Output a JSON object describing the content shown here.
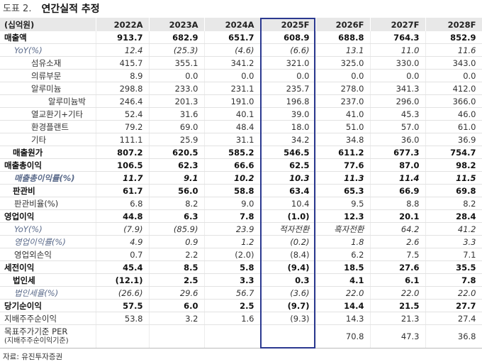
{
  "figure_label": "도표 2.",
  "title": "연간실적 추정",
  "header": [
    "(십억원)",
    "2022A",
    "2023A",
    "2024A",
    "2025F",
    "2026F",
    "2027F",
    "2028F"
  ],
  "rows": [
    {
      "label": "매출액",
      "style": "bold",
      "indent": "",
      "values": [
        "913.7",
        "682.9",
        "651.7",
        "608.9",
        "688.8",
        "764.3",
        "852.9"
      ]
    },
    {
      "label": "YoY(%)",
      "style": "ital",
      "indent": "i1",
      "values": [
        "12.4",
        "(25.3)",
        "(4.6)",
        "(6.6)",
        "13.1",
        "11.0",
        "11.6"
      ]
    },
    {
      "label": "섬유소재",
      "style": "",
      "indent": "i2",
      "values": [
        "415.7",
        "355.1",
        "341.2",
        "321.0",
        "325.0",
        "330.0",
        "343.0"
      ]
    },
    {
      "label": "의류부문",
      "style": "",
      "indent": "i2",
      "values": [
        "8.9",
        "0.0",
        "0.0",
        "0.0",
        "0.0",
        "0.0",
        "0.0"
      ]
    },
    {
      "label": "알루미늄",
      "style": "",
      "indent": "i2",
      "values": [
        "298.8",
        "233.0",
        "231.1",
        "235.7",
        "278.0",
        "341.3",
        "412.0"
      ]
    },
    {
      "label": "알루미늄박",
      "style": "",
      "indent": "i3",
      "values": [
        "246.4",
        "201.3",
        "191.0",
        "196.8",
        "237.0",
        "296.0",
        "366.0"
      ]
    },
    {
      "label": "열교환기+기타",
      "style": "",
      "indent": "i2",
      "values": [
        "52.4",
        "31.6",
        "40.1",
        "39.0",
        "41.0",
        "45.3",
        "46.0"
      ]
    },
    {
      "label": "환경플랜트",
      "style": "",
      "indent": "i2",
      "values": [
        "79.2",
        "69.0",
        "48.4",
        "18.0",
        "51.0",
        "57.0",
        "61.0"
      ]
    },
    {
      "label": "기타",
      "style": "",
      "indent": "i2",
      "values": [
        "111.1",
        "25.9",
        "31.1",
        "34.2",
        "34.8",
        "36.0",
        "36.9"
      ]
    },
    {
      "label": "매출원가",
      "style": "bold",
      "indent": "i0b",
      "values": [
        "807.2",
        "620.5",
        "585.2",
        "546.5",
        "611.2",
        "677.3",
        "754.7"
      ]
    },
    {
      "label": "매출총이익",
      "style": "bold",
      "indent": "",
      "values": [
        "106.5",
        "62.3",
        "66.6",
        "62.5",
        "77.6",
        "87.0",
        "98.2"
      ]
    },
    {
      "label": "매출총이익률(%)",
      "style": "bold ital",
      "indent": "i1",
      "values": [
        "11.7",
        "9.1",
        "10.2",
        "10.3",
        "11.3",
        "11.4",
        "11.5"
      ]
    },
    {
      "label": "판관비",
      "style": "bold",
      "indent": "i0b",
      "values": [
        "61.7",
        "56.0",
        "58.8",
        "63.4",
        "65.3",
        "66.9",
        "69.8"
      ]
    },
    {
      "label": "판관비율(%)",
      "style": "",
      "indent": "i1",
      "values": [
        "6.8",
        "8.2",
        "9.0",
        "10.4",
        "9.5",
        "8.8",
        "8.2"
      ]
    },
    {
      "label": "영업이익",
      "style": "bold",
      "indent": "",
      "values": [
        "44.8",
        "6.3",
        "7.8",
        "(1.0)",
        "12.3",
        "20.1",
        "28.4"
      ]
    },
    {
      "label": "YoY(%)",
      "style": "ital",
      "indent": "i1",
      "values": [
        "(7.9)",
        "(85.9)",
        "23.9",
        "적자전환",
        "흑자전환",
        "64.2",
        "41.2"
      ]
    },
    {
      "label": "영업이익률(%)",
      "style": "ital",
      "indent": "i1",
      "values": [
        "4.9",
        "0.9",
        "1.2",
        "(0.2)",
        "1.8",
        "2.6",
        "3.3"
      ]
    },
    {
      "label": "영업외손익",
      "style": "",
      "indent": "i1",
      "values": [
        "0.7",
        "2.2",
        "(2.0)",
        "(8.4)",
        "6.2",
        "7.5",
        "7.1"
      ]
    },
    {
      "label": "세전이익",
      "style": "bold",
      "indent": "",
      "values": [
        "45.4",
        "8.5",
        "5.8",
        "(9.4)",
        "18.5",
        "27.6",
        "35.5"
      ]
    },
    {
      "label": "법인세",
      "style": "bold",
      "indent": "i0b",
      "values": [
        "(12.1)",
        "2.5",
        "3.3",
        "0.3",
        "4.1",
        "6.1",
        "7.8"
      ]
    },
    {
      "label": "법인세율(%)",
      "style": "ital",
      "indent": "i1",
      "values": [
        "(26.6)",
        "29.6",
        "56.7",
        "(3.6)",
        "22.0",
        "22.0",
        "22.0"
      ]
    },
    {
      "label": "당기순이익",
      "style": "bold",
      "indent": "",
      "values": [
        "57.5",
        "6.0",
        "2.5",
        "(9.7)",
        "14.4",
        "21.5",
        "27.7"
      ]
    },
    {
      "label": "지배주주순이익",
      "style": "",
      "indent": "",
      "values": [
        "53.8",
        "3.2",
        "1.6",
        "(9.3)",
        "14.3",
        "21.3",
        "27.4"
      ]
    }
  ],
  "per_row": {
    "label": "목표주가기준 PER",
    "sublabel": "(지배주주순이익기준)",
    "values": [
      "",
      "",
      "",
      "",
      "70.8",
      "47.3",
      "36.8"
    ]
  },
  "source": "자료: 유진투자증권",
  "highlight_color": "#2b3990"
}
